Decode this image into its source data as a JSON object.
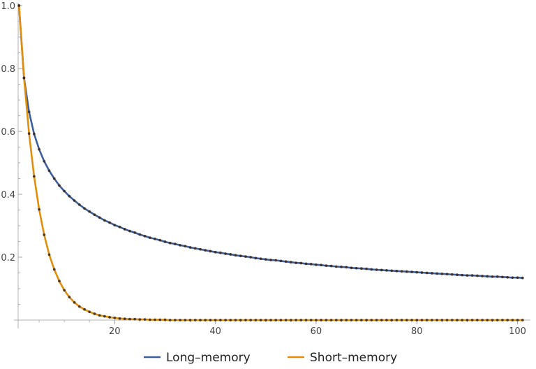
{
  "chart_data": {
    "type": "line",
    "title": "",
    "xlabel": "",
    "ylabel": "",
    "xlim": [
      0,
      102
    ],
    "ylim": [
      0,
      1.0
    ],
    "x_ticks": [
      20,
      40,
      60,
      80,
      100
    ],
    "x_tick_labels": [
      "20",
      "40",
      "60",
      "80",
      "100"
    ],
    "y_ticks": [
      0.2,
      0.4,
      0.6,
      0.8,
      1.0
    ],
    "y_tick_labels": [
      "0.2",
      "0.4",
      "0.6",
      "0.8",
      "1.0"
    ],
    "grid": false,
    "legend_position": "bottom",
    "x": [
      1,
      2,
      3,
      4,
      5,
      6,
      7,
      8,
      9,
      10,
      11,
      12,
      13,
      14,
      15,
      16,
      17,
      18,
      19,
      20,
      21,
      22,
      23,
      24,
      25,
      26,
      27,
      28,
      29,
      30,
      31,
      32,
      33,
      34,
      35,
      36,
      37,
      38,
      39,
      40,
      41,
      42,
      43,
      44,
      45,
      46,
      47,
      48,
      49,
      50,
      51,
      52,
      53,
      54,
      55,
      56,
      57,
      58,
      59,
      60,
      61,
      62,
      63,
      64,
      65,
      66,
      67,
      68,
      69,
      70,
      71,
      72,
      73,
      74,
      75,
      76,
      77,
      78,
      79,
      80,
      81,
      82,
      83,
      84,
      85,
      86,
      87,
      88,
      89,
      90,
      91,
      92,
      93,
      94,
      95,
      96,
      97,
      98,
      99,
      100,
      101
    ],
    "series": [
      {
        "name": "Long–memory",
        "color": "#3d5f9e",
        "values": [
          1.0,
          0.77,
          0.662,
          0.592,
          0.543,
          0.505,
          0.475,
          0.45,
          0.428,
          0.41,
          0.394,
          0.38,
          0.367,
          0.355,
          0.345,
          0.335,
          0.326,
          0.317,
          0.31,
          0.302,
          0.296,
          0.289,
          0.283,
          0.278,
          0.272,
          0.267,
          0.262,
          0.258,
          0.254,
          0.249,
          0.245,
          0.242,
          0.238,
          0.235,
          0.231,
          0.228,
          0.225,
          0.222,
          0.219,
          0.216,
          0.214,
          0.211,
          0.209,
          0.206,
          0.204,
          0.202,
          0.2,
          0.197,
          0.195,
          0.193,
          0.191,
          0.19,
          0.188,
          0.186,
          0.184,
          0.182,
          0.181,
          0.179,
          0.178,
          0.176,
          0.175,
          0.173,
          0.172,
          0.17,
          0.169,
          0.168,
          0.166,
          0.165,
          0.164,
          0.163,
          0.161,
          0.16,
          0.159,
          0.158,
          0.157,
          0.156,
          0.155,
          0.154,
          0.153,
          0.152,
          0.151,
          0.15,
          0.149,
          0.148,
          0.147,
          0.146,
          0.145,
          0.144,
          0.143,
          0.142,
          0.142,
          0.141,
          0.14,
          0.139,
          0.138,
          0.138,
          0.137,
          0.136,
          0.135,
          0.135,
          0.134
        ]
      },
      {
        "name": "Short–memory",
        "color": "#e08e0b",
        "values": [
          1.0,
          0.77,
          0.593,
          0.457,
          0.352,
          0.271,
          0.208,
          0.161,
          0.124,
          0.095,
          0.073,
          0.056,
          0.043,
          0.034,
          0.026,
          0.02,
          0.015,
          0.012,
          0.009,
          0.007,
          0.005,
          0.004,
          0.003,
          0.003,
          0.002,
          0.002,
          0.001,
          0.001,
          0.001,
          0.001,
          0,
          0,
          0,
          0,
          0,
          0,
          0,
          0,
          0,
          0,
          0,
          0,
          0,
          0,
          0,
          0,
          0,
          0,
          0,
          0,
          0,
          0,
          0,
          0,
          0,
          0,
          0,
          0,
          0,
          0,
          0,
          0,
          0,
          0,
          0,
          0,
          0,
          0,
          0,
          0,
          0,
          0,
          0,
          0,
          0,
          0,
          0,
          0,
          0,
          0,
          0,
          0,
          0,
          0,
          0,
          0,
          0,
          0,
          0,
          0,
          0,
          0,
          0,
          0,
          0,
          0,
          0,
          0,
          0,
          0,
          0
        ]
      }
    ]
  }
}
